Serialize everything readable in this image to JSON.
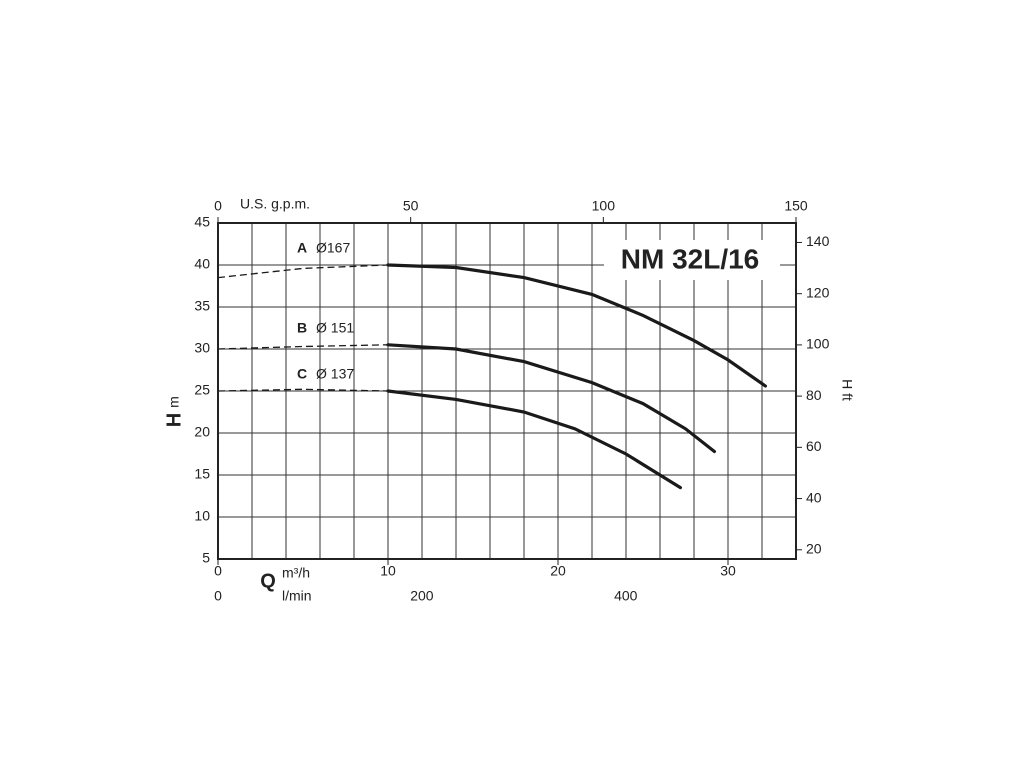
{
  "chart_data": {
    "type": "line",
    "title": "NM 32L/16",
    "y_label": "H",
    "y_unit": "m",
    "y2_label": "H ft",
    "x_label": "Q",
    "x_unit": "m³/h",
    "x2_label": "U.S. g.p.m.",
    "x3_label": "l/min",
    "xlim": [
      0,
      34
    ],
    "xticks": [
      0,
      10,
      20,
      30
    ],
    "xgrid": [
      2,
      4,
      6,
      8,
      10,
      12,
      14,
      16,
      18,
      20,
      22,
      24,
      26,
      28,
      30,
      32
    ],
    "ylim": [
      5,
      45
    ],
    "yticks": [
      5,
      10,
      15,
      20,
      25,
      30,
      35,
      40,
      45
    ],
    "x2lim": [
      0,
      150
    ],
    "x2ticks": [
      0,
      50,
      100,
      150
    ],
    "x3lim": [
      0,
      567
    ],
    "x3ticks": [
      0,
      200,
      400
    ],
    "y2lim": [
      16.4,
      147.6
    ],
    "y2ticks": [
      20,
      40,
      60,
      80,
      100,
      120,
      140
    ],
    "grid": true,
    "color": "#1a1a1a",
    "series": [
      {
        "name": "A",
        "label": "Ø167",
        "x": [
          10,
          14,
          18,
          22,
          25,
          28,
          30,
          32.2
        ],
        "values": [
          40,
          39.7,
          38.5,
          36.5,
          34,
          31,
          28.7,
          25.6
        ],
        "extrapolated_x": [
          0,
          5,
          10
        ],
        "extrapolated_values": [
          38.5,
          39.6,
          40
        ]
      },
      {
        "name": "B",
        "label": "Ø 151",
        "x": [
          10,
          14,
          18,
          22,
          25,
          27.5,
          29.2
        ],
        "values": [
          30.5,
          30,
          28.5,
          26,
          23.5,
          20.5,
          17.8
        ],
        "extrapolated_x": [
          0,
          5,
          10
        ],
        "extrapolated_values": [
          30,
          30.3,
          30.5
        ]
      },
      {
        "name": "C",
        "label": "Ø 137",
        "x": [
          10,
          14,
          18,
          21,
          24,
          27.2
        ],
        "values": [
          25,
          24,
          22.5,
          20.5,
          17.5,
          13.5
        ],
        "extrapolated_x": [
          0,
          5,
          10
        ],
        "extrapolated_values": [
          25,
          25.2,
          25
        ]
      }
    ]
  }
}
